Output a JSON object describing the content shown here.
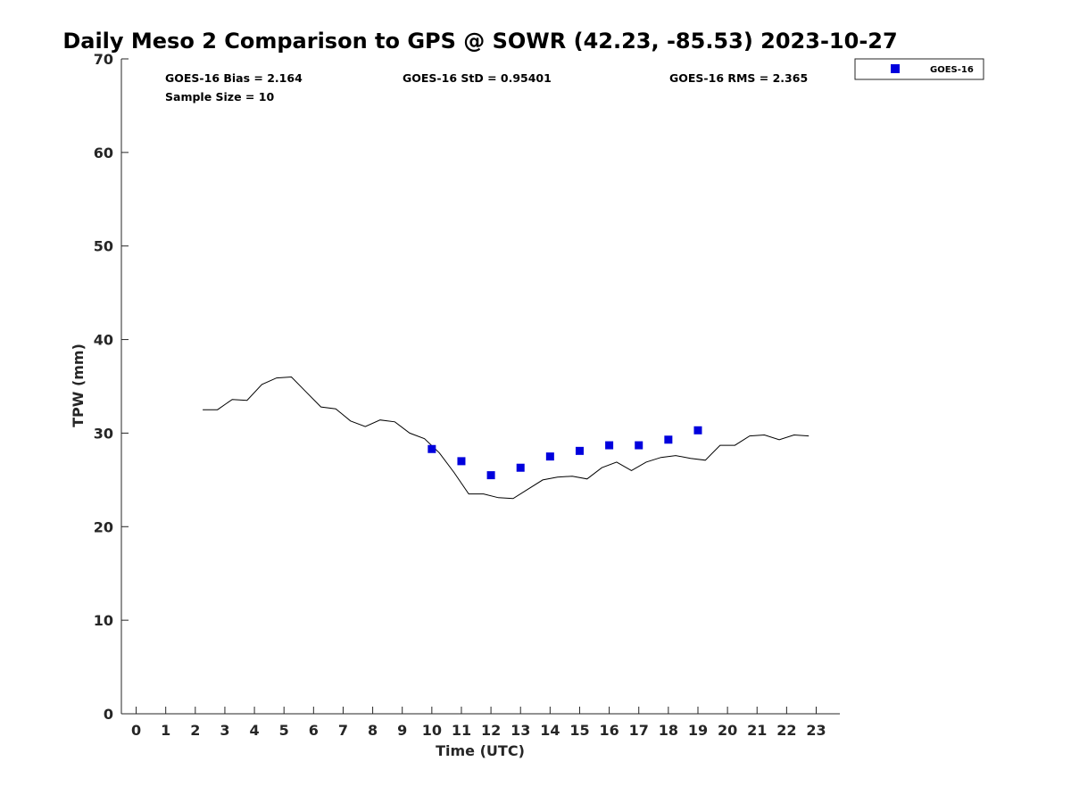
{
  "chart_data": {
    "type": "scatter",
    "title": "Daily Meso 2 Comparison to GPS @ SOWR (42.23, -85.53) 2023-10-27",
    "xlabel": "Time (UTC)",
    "ylabel": "TPW (mm)",
    "xlim": [
      -0.5,
      23.8
    ],
    "ylim": [
      0,
      70
    ],
    "xticks": [
      0,
      1,
      2,
      3,
      4,
      5,
      6,
      7,
      8,
      9,
      10,
      11,
      12,
      13,
      14,
      15,
      16,
      17,
      18,
      19,
      20,
      21,
      22,
      23
    ],
    "yticks": [
      0,
      10,
      20,
      30,
      40,
      50,
      60,
      70
    ],
    "grid": false,
    "legend_position": "outside-top-right",
    "stats": {
      "bias": "GOES-16 Bias = 2.164",
      "std": "GOES-16 StD = 0.95401",
      "rms": "GOES-16 RMS = 2.365",
      "sample_size": "Sample Size = 10"
    },
    "series": [
      {
        "kind": "line",
        "color": "#000000",
        "x": [
          2.25,
          2.75,
          3.25,
          3.75,
          4.25,
          4.75,
          5.25,
          5.75,
          6.25,
          6.75,
          7.25,
          7.75,
          8.25,
          8.75,
          9.25,
          9.75,
          10.25,
          10.75,
          11.25,
          11.75,
          12.25,
          12.75,
          13.25,
          13.75,
          14.25,
          14.75,
          15.25,
          15.75,
          16.25,
          16.75,
          17.25,
          17.75,
          18.25,
          18.75,
          19.25,
          19.75,
          20.25,
          20.75,
          21.25,
          21.75,
          22.25,
          22.75
        ],
        "y": [
          32.5,
          32.5,
          33.6,
          33.5,
          35.2,
          35.9,
          36.0,
          34.4,
          32.8,
          32.6,
          31.3,
          30.7,
          31.4,
          31.2,
          30.0,
          29.4,
          27.9,
          25.8,
          23.5,
          23.5,
          23.1,
          23.0,
          24.0,
          25.0,
          25.3,
          25.4,
          25.1,
          26.3,
          26.9,
          26.0,
          26.9,
          27.4,
          27.6,
          27.3,
          27.1,
          28.7,
          28.7,
          29.7,
          29.8,
          29.3,
          29.8,
          29.7
        ]
      },
      {
        "name": "GOES-16",
        "kind": "scatter",
        "color": "#0000dd",
        "x": [
          10,
          11,
          12,
          13,
          14,
          15,
          16,
          17,
          18,
          19
        ],
        "y": [
          28.3,
          27.0,
          25.5,
          26.3,
          27.5,
          28.1,
          28.7,
          28.7,
          29.3,
          30.3
        ]
      }
    ]
  }
}
